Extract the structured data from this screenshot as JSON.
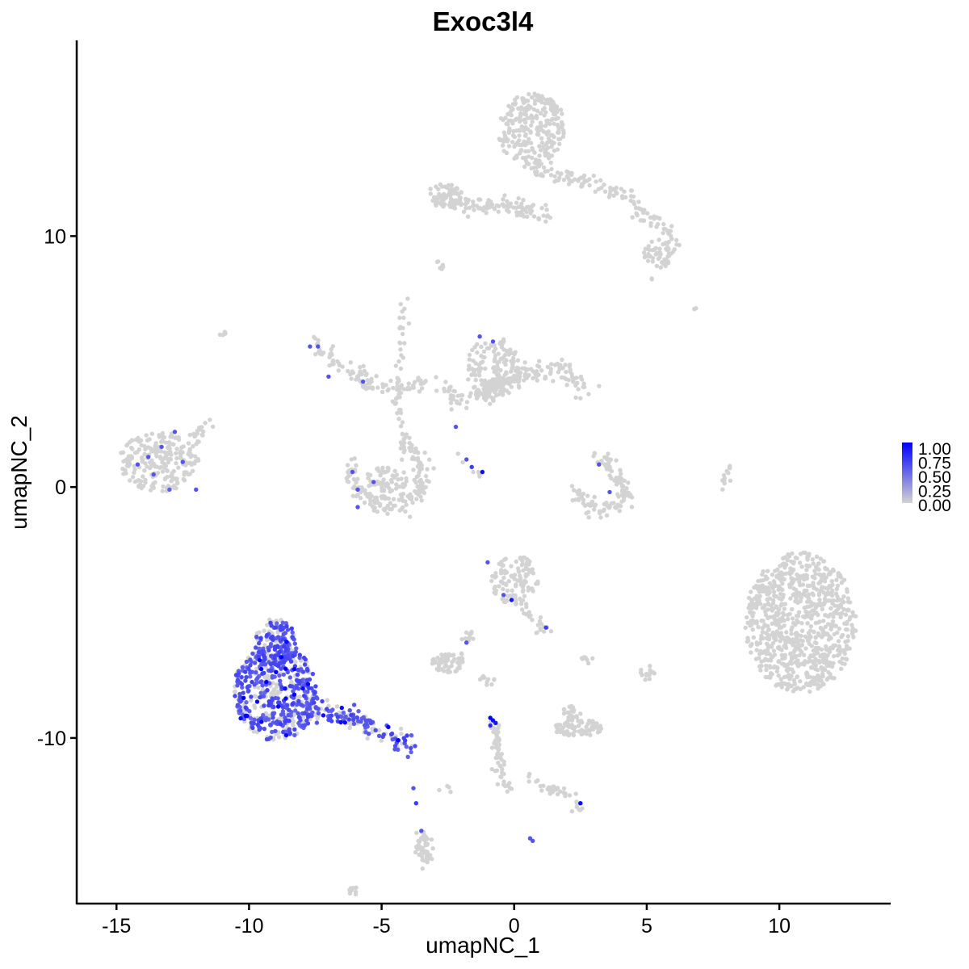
{
  "chart_data": {
    "type": "scatter",
    "title": "Exoc3l4",
    "xlabel": "umapNC_1",
    "ylabel": "umapNC_2",
    "xlim": [
      -16.5,
      14.2
    ],
    "ylim": [
      -16.6,
      17.8
    ],
    "x_ticks": [
      -15,
      -10,
      -5,
      0,
      5,
      10
    ],
    "x_tick_labels": [
      "-15",
      "-10",
      "-5",
      "0",
      "5",
      "10"
    ],
    "y_ticks": [
      -10,
      0,
      10
    ],
    "y_tick_labels": [
      "-10",
      "0",
      "10"
    ],
    "grid": false,
    "legend": {
      "placement": "right",
      "type": "colorbar",
      "low_color": "#d3d3d3",
      "high_color": "#0000ff",
      "range": [
        0,
        1
      ],
      "labels": [
        "1.00",
        "0.75",
        "0.50",
        "0.25",
        "0.00"
      ]
    },
    "clusters": [
      {
        "kind": "ellipse",
        "cx": 0.7,
        "cy": 14.2,
        "rx": 1.3,
        "ry": 1.5,
        "n": 260
      },
      {
        "kind": "path",
        "points": [
          [
            0.7,
            12.8
          ],
          [
            1.4,
            12.3
          ],
          [
            2.2,
            12.4
          ],
          [
            3.1,
            12.0
          ],
          [
            4.2,
            11.7
          ],
          [
            5.0,
            10.8
          ],
          [
            5.8,
            10.3
          ],
          [
            6.0,
            9.6
          ]
        ],
        "width": 0.35,
        "n": 130
      },
      {
        "kind": "path",
        "points": [
          [
            -2.9,
            11.6
          ],
          [
            -2.0,
            11.3
          ],
          [
            -1.0,
            11.2
          ],
          [
            0.0,
            11.1
          ],
          [
            0.8,
            11.0
          ],
          [
            1.2,
            10.9
          ]
        ],
        "width": 0.35,
        "n": 110
      },
      {
        "kind": "ellipse",
        "cx": 5.5,
        "cy": 9.3,
        "rx": 0.6,
        "ry": 0.6,
        "n": 50
      },
      {
        "kind": "ellipse",
        "cx": -2.6,
        "cy": 11.6,
        "rx": 0.7,
        "ry": 0.5,
        "n": 60
      },
      {
        "kind": "ellipse",
        "cx": -13.4,
        "cy": 1.0,
        "rx": 1.5,
        "ry": 1.2,
        "n": 220
      },
      {
        "kind": "path",
        "points": [
          [
            -12.3,
            1.5
          ],
          [
            -12.0,
            2.0
          ],
          [
            -11.6,
            2.7
          ]
        ],
        "width": 0.3,
        "n": 20
      },
      {
        "kind": "path",
        "points": [
          [
            -7.5,
            5.8
          ],
          [
            -6.8,
            5.0
          ],
          [
            -6.0,
            4.5
          ],
          [
            -5.2,
            4.0
          ],
          [
            -4.5,
            3.9
          ],
          [
            -4.0,
            4.0
          ],
          [
            -3.5,
            4.3
          ]
        ],
        "width": 0.35,
        "n": 100
      },
      {
        "kind": "path",
        "points": [
          [
            -4.2,
            7.5
          ],
          [
            -4.2,
            6.0
          ],
          [
            -4.3,
            4.8
          ],
          [
            -4.4,
            3.5
          ],
          [
            -4.3,
            2.3
          ]
        ],
        "width": 0.2,
        "n": 40
      },
      {
        "kind": "path",
        "points": [
          [
            -6.2,
            1.0
          ],
          [
            -6.0,
            0.0
          ],
          [
            -5.3,
            -0.6
          ],
          [
            -4.3,
            -0.7
          ],
          [
            -3.6,
            -0.2
          ],
          [
            -3.4,
            0.7
          ],
          [
            -3.8,
            1.5
          ],
          [
            -4.3,
            2.0
          ]
        ],
        "width": 0.35,
        "n": 180
      },
      {
        "kind": "ellipse",
        "cx": -4.8,
        "cy": 0.3,
        "rx": 0.8,
        "ry": 0.5,
        "n": 60
      },
      {
        "kind": "ellipse",
        "cx": -0.8,
        "cy": 4.7,
        "rx": 1.0,
        "ry": 1.3,
        "n": 160
      },
      {
        "kind": "path",
        "points": [
          [
            -1.6,
            3.6
          ],
          [
            -0.6,
            4.1
          ],
          [
            0.5,
            4.6
          ],
          [
            1.6,
            4.8
          ],
          [
            2.4,
            4.3
          ],
          [
            2.6,
            3.8
          ]
        ],
        "width": 0.45,
        "n": 150
      },
      {
        "kind": "path",
        "points": [
          [
            -2.8,
            4.1
          ],
          [
            -2.3,
            3.7
          ],
          [
            -1.9,
            3.2
          ]
        ],
        "width": 0.3,
        "n": 30
      },
      {
        "kind": "path",
        "points": [
          [
            -2.3,
            1.5
          ],
          [
            -1.9,
            1.0
          ],
          [
            -1.5,
            0.6
          ],
          [
            -1.2,
            0.5
          ]
        ],
        "width": 0.1,
        "n": 8
      },
      {
        "kind": "path",
        "points": [
          [
            2.3,
            -0.2
          ],
          [
            3.0,
            -0.9
          ],
          [
            3.8,
            -0.8
          ],
          [
            4.3,
            -0.4
          ],
          [
            3.9,
            0.3
          ],
          [
            3.5,
            0.9
          ],
          [
            3.1,
            1.3
          ]
        ],
        "width": 0.3,
        "n": 120
      },
      {
        "kind": "path",
        "points": [
          [
            7.8,
            -0.2
          ],
          [
            8.0,
            0.4
          ],
          [
            8.3,
            1.0
          ]
        ],
        "width": 0.12,
        "n": 12
      },
      {
        "kind": "ellipse",
        "cx": 10.8,
        "cy": -5.4,
        "rx": 2.1,
        "ry": 2.8,
        "n": 820
      },
      {
        "kind": "ellipse",
        "cx": 0.0,
        "cy": -3.7,
        "rx": 0.9,
        "ry": 1.0,
        "n": 110
      },
      {
        "kind": "path",
        "points": [
          [
            0.0,
            -4.5
          ],
          [
            0.7,
            -5.2
          ],
          [
            1.2,
            -5.8
          ]
        ],
        "width": 0.2,
        "n": 25
      },
      {
        "kind": "ellipse",
        "cx": -2.5,
        "cy": -7.0,
        "rx": 0.6,
        "ry": 0.4,
        "n": 60
      },
      {
        "kind": "path",
        "points": [
          [
            -2.4,
            -7.3
          ],
          [
            -1.9,
            -6.5
          ],
          [
            -1.7,
            -5.8
          ]
        ],
        "width": 0.15,
        "n": 15
      },
      {
        "kind": "ellipse",
        "cx": 2.4,
        "cy": -9.6,
        "rx": 0.9,
        "ry": 0.35,
        "n": 80
      },
      {
        "kind": "ellipse",
        "cx": 2.2,
        "cy": -9.0,
        "rx": 0.4,
        "ry": 0.3,
        "n": 20
      },
      {
        "kind": "path",
        "points": [
          [
            -0.8,
            -9.3
          ],
          [
            -0.6,
            -10.5
          ],
          [
            -0.5,
            -11.5
          ],
          [
            -0.2,
            -12.0
          ]
        ],
        "width": 0.2,
        "n": 60
      },
      {
        "kind": "path",
        "points": [
          [
            0.5,
            -11.7
          ],
          [
            1.5,
            -12.1
          ],
          [
            2.2,
            -12.4
          ],
          [
            2.5,
            -12.8
          ]
        ],
        "width": 0.25,
        "n": 40
      },
      {
        "kind": "path",
        "points": [
          [
            -3.5,
            -13.8
          ],
          [
            -3.4,
            -14.5
          ],
          [
            -3.3,
            -15.0
          ]
        ],
        "width": 0.25,
        "n": 50
      },
      {
        "kind": "ellipse",
        "cx": 5.0,
        "cy": -7.4,
        "rx": 0.3,
        "ry": 0.3,
        "n": 14
      },
      {
        "kind": "ellipse",
        "cx": 2.8,
        "cy": -6.9,
        "rx": 0.3,
        "ry": 0.15,
        "n": 8
      },
      {
        "kind": "ellipse",
        "cx": -1.0,
        "cy": -7.7,
        "rx": 0.3,
        "ry": 0.2,
        "n": 10
      },
      {
        "kind": "ellipse",
        "cx": -6.0,
        "cy": -16.1,
        "rx": 0.25,
        "ry": 0.15,
        "n": 8
      },
      {
        "kind": "ellipse",
        "cx": -2.8,
        "cy": 8.8,
        "rx": 0.25,
        "ry": 0.2,
        "n": 8
      },
      {
        "kind": "ellipse",
        "cx": -11.0,
        "cy": 6.1,
        "rx": 0.12,
        "ry": 0.12,
        "n": 4
      },
      {
        "kind": "ellipse",
        "cx": 6.8,
        "cy": 7.1,
        "rx": 0.1,
        "ry": 0.1,
        "n": 2
      },
      {
        "kind": "ellipse",
        "cx": 5.1,
        "cy": 8.3,
        "rx": 0.1,
        "ry": 0.1,
        "n": 2
      },
      {
        "kind": "path",
        "points": [
          [
            -2.4,
            -12.0
          ],
          [
            -2.9,
            -12.1
          ]
        ],
        "width": 0.1,
        "n": 4
      }
    ],
    "expressing_cluster": {
      "cx": -9.0,
      "cy": -8.2,
      "rx": 1.6,
      "ry": 1.9,
      "n": 520,
      "expr_fraction": 0.62,
      "tail": [
        [
          -8.0,
          -8.8
        ],
        [
          -7.0,
          -9.0
        ],
        [
          -6.0,
          -9.3
        ],
        [
          -5.2,
          -9.7
        ],
        [
          -4.5,
          -10.1
        ],
        [
          -3.8,
          -10.3
        ]
      ],
      "tail_n": 140,
      "top_lobe": {
        "cx": -9.0,
        "cy": -6.3,
        "rx": 0.8,
        "ry": 1.1,
        "n": 150
      }
    },
    "expressing_points": [
      {
        "x": -13.8,
        "y": 1.2,
        "v": 0.6
      },
      {
        "x": -13.3,
        "y": 1.6,
        "v": 0.6
      },
      {
        "x": -12.8,
        "y": 2.2,
        "v": 0.6
      },
      {
        "x": -13.6,
        "y": 0.5,
        "v": 0.6
      },
      {
        "x": -14.2,
        "y": 0.9,
        "v": 0.6
      },
      {
        "x": -12.0,
        "y": -0.1,
        "v": 0.6
      },
      {
        "x": -13.0,
        "y": -0.1,
        "v": 0.55
      },
      {
        "x": -12.5,
        "y": 1.0,
        "v": 0.6
      },
      {
        "x": -7.4,
        "y": 5.6,
        "v": 0.6
      },
      {
        "x": -7.0,
        "y": 4.4,
        "v": 0.6
      },
      {
        "x": -7.7,
        "y": 5.6,
        "v": 0.6
      },
      {
        "x": -5.7,
        "y": 4.2,
        "v": 0.6
      },
      {
        "x": -6.1,
        "y": 0.6,
        "v": 0.6
      },
      {
        "x": -5.9,
        "y": -0.1,
        "v": 0.6
      },
      {
        "x": -5.3,
        "y": 0.2,
        "v": 0.6
      },
      {
        "x": -5.9,
        "y": -0.8,
        "v": 0.6
      },
      {
        "x": -1.3,
        "y": 6.0,
        "v": 0.6
      },
      {
        "x": -0.8,
        "y": 5.8,
        "v": 0.6
      },
      {
        "x": -2.2,
        "y": 2.4,
        "v": 0.6
      },
      {
        "x": -1.8,
        "y": 1.1,
        "v": 0.6
      },
      {
        "x": -1.6,
        "y": 0.8,
        "v": 0.7
      },
      {
        "x": -1.2,
        "y": 0.6,
        "v": 0.95
      },
      {
        "x": 3.2,
        "y": 0.9,
        "v": 0.6
      },
      {
        "x": 3.6,
        "y": -0.2,
        "v": 0.6
      },
      {
        "x": -1.0,
        "y": -3.0,
        "v": 0.6
      },
      {
        "x": -0.4,
        "y": -4.3,
        "v": 0.6
      },
      {
        "x": -0.1,
        "y": -4.5,
        "v": 0.9
      },
      {
        "x": 1.2,
        "y": -5.6,
        "v": 0.7
      },
      {
        "x": -1.8,
        "y": -6.2,
        "v": 0.6
      },
      {
        "x": -0.9,
        "y": -9.2,
        "v": 1.0
      },
      {
        "x": -0.8,
        "y": -9.3,
        "v": 0.95
      },
      {
        "x": -0.7,
        "y": -9.4,
        "v": 0.9
      },
      {
        "x": -0.9,
        "y": -9.5,
        "v": 0.8
      },
      {
        "x": -3.8,
        "y": -12.0,
        "v": 0.6
      },
      {
        "x": -3.7,
        "y": -12.6,
        "v": 0.7
      },
      {
        "x": -3.5,
        "y": -13.7,
        "v": 0.6
      },
      {
        "x": 2.5,
        "y": -12.6,
        "v": 0.95
      },
      {
        "x": 0.6,
        "y": -14.0,
        "v": 0.6
      },
      {
        "x": 0.7,
        "y": -14.1,
        "v": 0.6
      },
      {
        "x": -6.5,
        "y": -8.8,
        "v": 0.95
      },
      {
        "x": -6.2,
        "y": -8.9,
        "v": 0.6
      },
      {
        "x": -5.5,
        "y": -9.3,
        "v": 0.6
      },
      {
        "x": -7.2,
        "y": -9.1,
        "v": 0.95
      }
    ]
  }
}
